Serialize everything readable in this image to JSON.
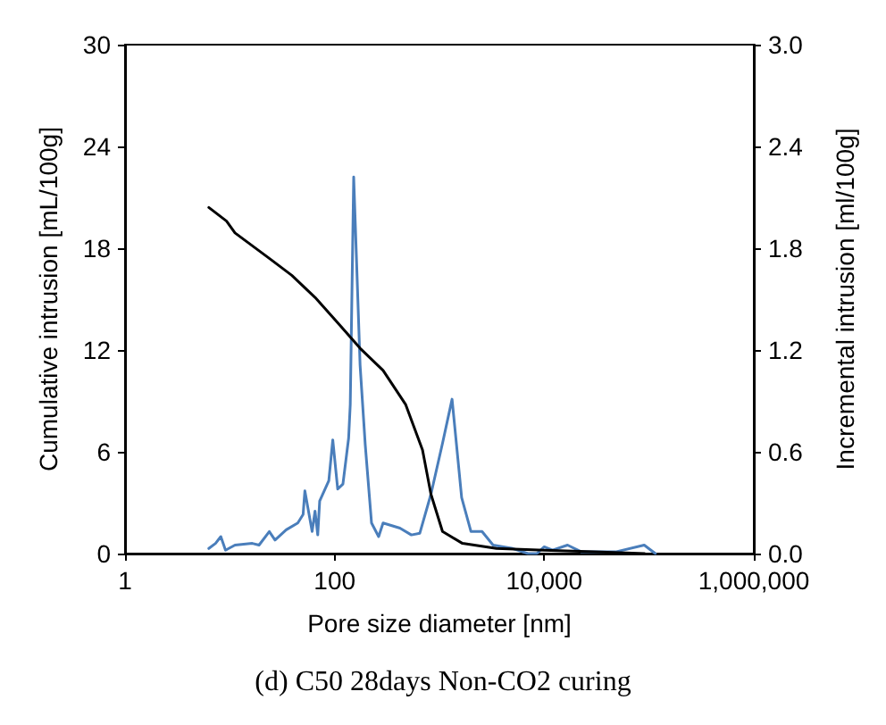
{
  "chart_data": {
    "type": "line",
    "xlabel": "Pore size diameter [nm]",
    "ylabel": "Cumulative intrusion [mL/100g]",
    "y2label": "Incremental intrusion [ml/100g]",
    "annotations": [
      "(d) C50 28days Non-CO2 curing"
    ],
    "log": "x",
    "grid": false,
    "marker": "none",
    "line_style": "solid",
    "xlim": [
      1,
      1000000
    ],
    "xticks": [
      {
        "value": 1,
        "label": "1"
      },
      {
        "value": 100,
        "label": "100"
      },
      {
        "value": 10000,
        "label": "10,000"
      },
      {
        "value": 1000000,
        "label": "1,000,000"
      }
    ],
    "ylim": [
      0,
      30
    ],
    "yticks": [
      0,
      6,
      12,
      18,
      24,
      30
    ],
    "y2lim": [
      0,
      3
    ],
    "y2ticks": [
      {
        "value": 0,
        "label": "0.0"
      },
      {
        "value": 0.6,
        "label": "0.6"
      },
      {
        "value": 1.2,
        "label": "1.2"
      },
      {
        "value": 1.8,
        "label": "1.8"
      },
      {
        "value": 2.4,
        "label": "2.4"
      },
      {
        "value": 3,
        "label": "3.0"
      }
    ],
    "series": [
      {
        "color": "#000000",
        "x": [
          6.3,
          9.3,
          11.2,
          23.8,
          39,
          65,
          107,
          175,
          290,
          475,
          690,
          830,
          1070,
          1660,
          3500,
          10000,
          30000,
          91000
        ],
        "values": [
          20.4,
          19.6,
          18.9,
          17.4,
          16.4,
          15.1,
          13.6,
          12.1,
          10.8,
          8.8,
          6.1,
          3.5,
          1.3,
          0.6,
          0.3,
          0.2,
          0.1,
          0
        ]
      },
      {
        "color": "#4a7ebb",
        "axis": "y2",
        "x": [
          6.3,
          7.3,
          8.2,
          9.1,
          11.2,
          16.4,
          19,
          23.8,
          27,
          34.5,
          44.5,
          50,
          52,
          61,
          65,
          69,
          72,
          88,
          96,
          107,
          120,
          136,
          141,
          152,
          175,
          196,
          225,
          263,
          290,
          420,
          540,
          650,
          830,
          1070,
          1320,
          1630,
          2000,
          2550,
          3250,
          5000,
          7000,
          8500,
          10000,
          12000,
          16700,
          22700,
          48000,
          90000,
          115000
        ],
        "values": [
          0.03,
          0.06,
          0.1,
          0.02,
          0.05,
          0.06,
          0.05,
          0.13,
          0.08,
          0.14,
          0.18,
          0.23,
          0.37,
          0.13,
          0.25,
          0.11,
          0.31,
          0.43,
          0.67,
          0.38,
          0.41,
          0.68,
          0.88,
          2.22,
          1.11,
          0.64,
          0.18,
          0.1,
          0.18,
          0.15,
          0.11,
          0.12,
          0.35,
          0.65,
          0.91,
          0.33,
          0.13,
          0.13,
          0.05,
          0.03,
          0,
          0,
          0.04,
          0.02,
          0.05,
          0.01,
          0.01,
          0.05,
          0
        ]
      }
    ]
  }
}
